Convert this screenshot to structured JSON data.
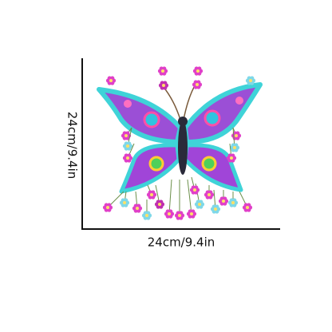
{
  "dimensions": {
    "height_label": "24cm/9.4in",
    "width_label": "24cm/9.4in"
  }
}
